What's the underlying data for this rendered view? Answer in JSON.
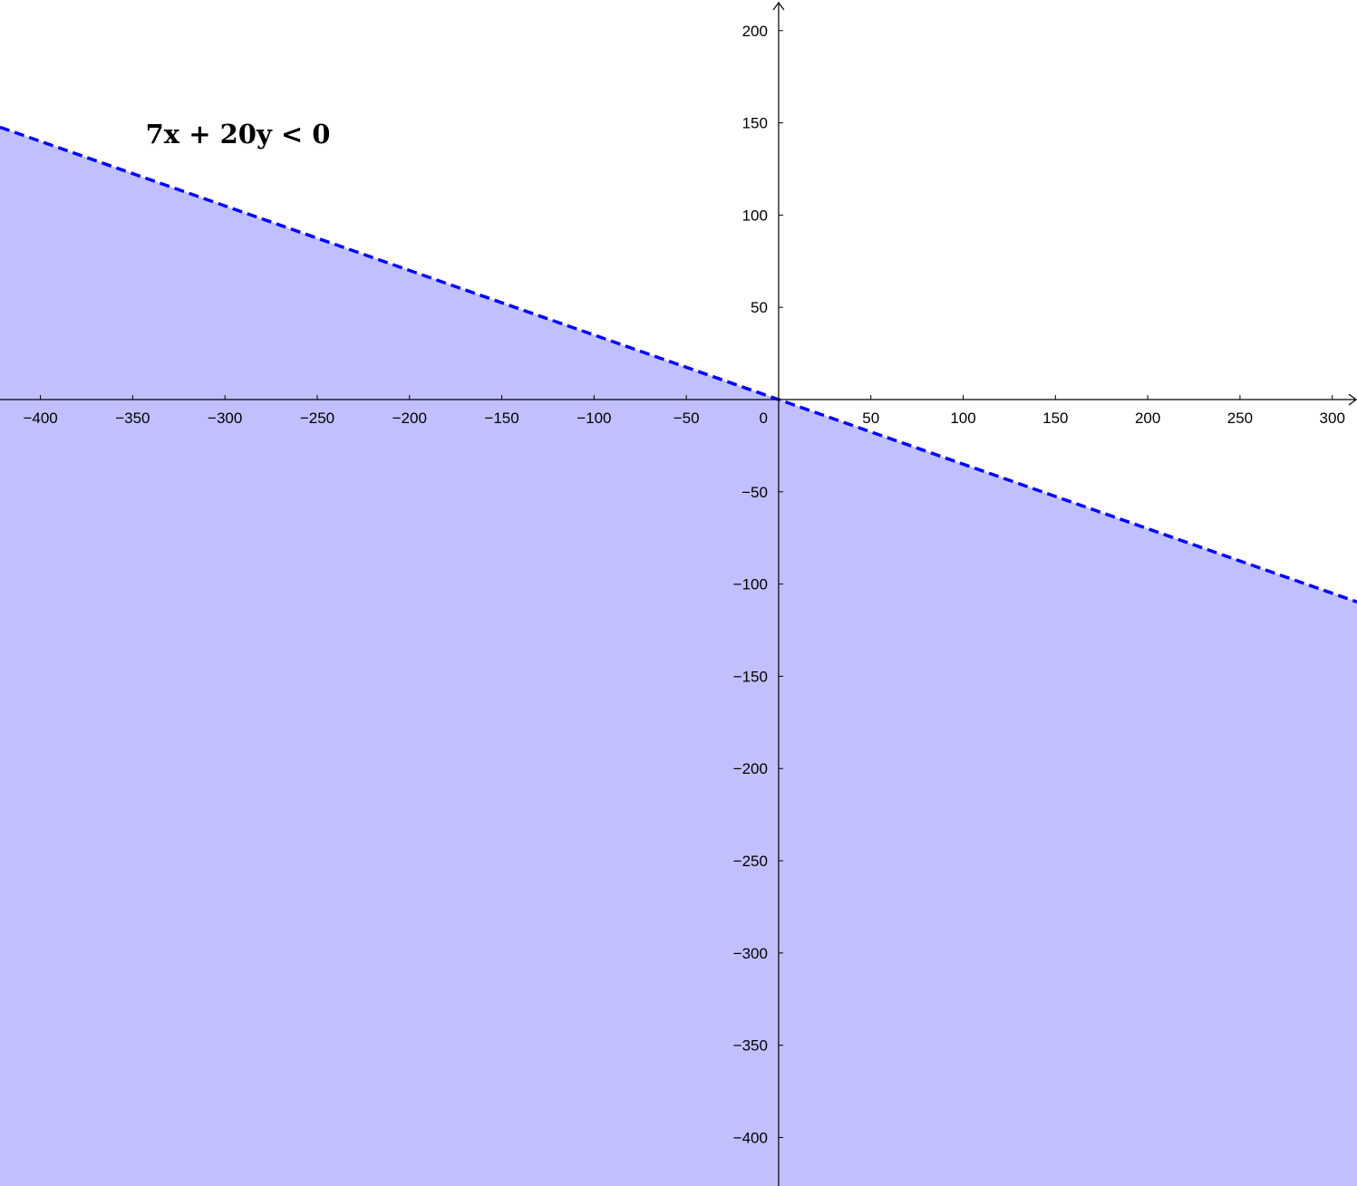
{
  "chart_data": {
    "type": "area",
    "title": "",
    "xlabel": "",
    "ylabel": "",
    "xlim": [
      -421.9,
      313.4
    ],
    "ylim": [
      -426.3,
      216.6
    ],
    "grid": false,
    "x_ticks": [
      -400,
      -350,
      -300,
      -250,
      -200,
      -150,
      -100,
      -50,
      0,
      50,
      100,
      150,
      200,
      250,
      300
    ],
    "y_ticks": [
      -400,
      -350,
      -300,
      -250,
      -200,
      -150,
      -100,
      -50,
      50,
      100,
      150,
      200
    ],
    "inequality": {
      "label": "7x + 20y < 0",
      "a": 7,
      "b": 20,
      "c": 0,
      "relation": "<",
      "boundary": "dashed",
      "label_position": [
        -343,
        139
      ]
    },
    "colors": {
      "fill": "#c0c0ff",
      "boundary": "#0000ff",
      "axis": "#000000"
    }
  }
}
